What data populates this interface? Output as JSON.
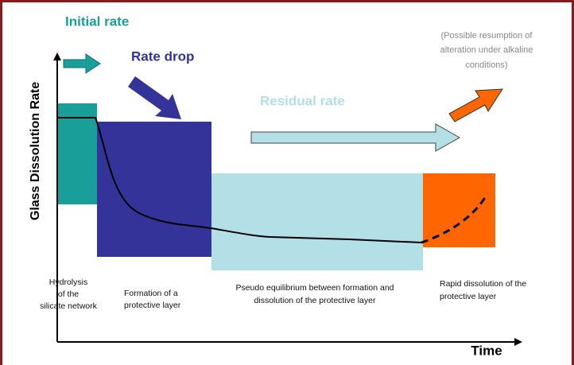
{
  "y_axis_label": "Glass Dissolution Rate",
  "x_axis_label": "Time",
  "stage_titles": [
    "Initial rate",
    "Rate drop",
    "Residual rate"
  ],
  "note": [
    "(Possible resumption of",
    "alteration under alkaline",
    "conditions)"
  ],
  "phases": [
    {
      "label": [
        "Hydrolysis",
        "of the",
        "silicate network"
      ]
    },
    {
      "label": [
        "Formation of a",
        "protective layer"
      ]
    },
    {
      "label": [
        "Pseudo equilibrium between formation and",
        "dissolution of the protective layer"
      ]
    },
    {
      "label": [
        "Rapid dissolution of the",
        "protective layer"
      ]
    }
  ]
}
